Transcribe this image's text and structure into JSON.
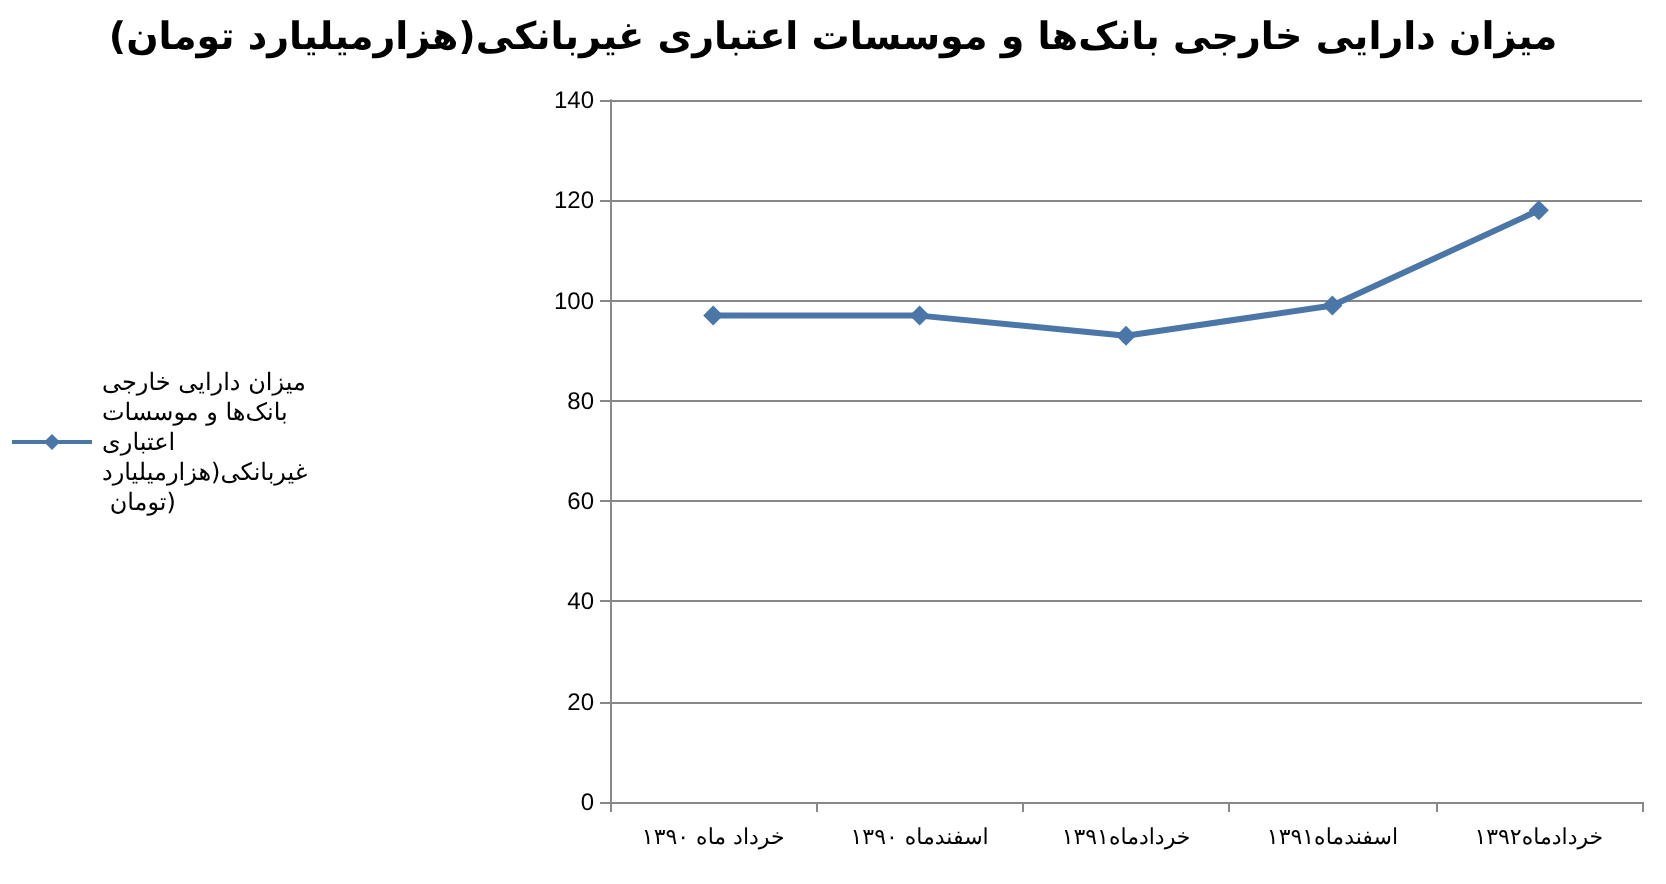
{
  "chart_data": {
    "type": "line",
    "title": "میزان دارایی خارجی بانک‌ها و موسسات اعتباری غیربانکی(هزارمیلیارد تومان)",
    "categories": [
      "خرداد ماه ۱۳۹۰",
      "اسفندماه ۱۳۹۰",
      "خردادماه۱۳۹۱",
      "اسفندماه۱۳۹۱",
      "خردادماه۱۳۹۲"
    ],
    "series": [
      {
        "name": "میزان دارایی خارجی بانک‌ها و موسسات اعتباری غیربانکی(هزارمیلیارد تومان)",
        "color": "#4a76a8",
        "values": [
          97,
          97,
          93,
          99,
          118
        ]
      }
    ],
    "ylim": [
      0,
      140
    ],
    "yticks": [
      0,
      20,
      40,
      60,
      80,
      100,
      120,
      140
    ],
    "grid": "y",
    "legend": "left",
    "marker": "diamond",
    "line_style": "solid"
  }
}
